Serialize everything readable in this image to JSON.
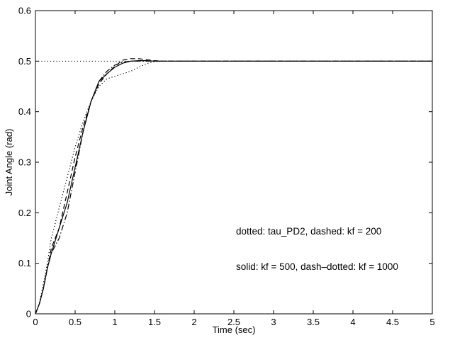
{
  "chart_data": {
    "type": "line",
    "title": "",
    "xlabel": "Time  (sec)",
    "ylabel": "Joint  Angle  (rad)",
    "xlim": [
      0,
      5
    ],
    "ylim": [
      0,
      0.6
    ],
    "xticks": [
      0,
      0.5,
      1,
      1.5,
      2,
      2.5,
      3,
      3.5,
      4,
      4.5,
      5
    ],
    "xtick_labels": [
      "0",
      "0.5",
      "1",
      "1.5",
      "2",
      "2.5",
      "3",
      "3.5",
      "4",
      "4.5",
      "5"
    ],
    "yticks": [
      0,
      0.1,
      0.2,
      0.3,
      0.4,
      0.5,
      0.6
    ],
    "ytick_labels": [
      "0",
      "0.1",
      "0.2",
      "0.3",
      "0.4",
      "0.5",
      "0.6"
    ],
    "grid": false,
    "legend": "none",
    "annotations": [
      "dotted: tau_PD2,   dashed: kf = 200",
      "solid: kf = 500,   dash–dotted: kf = 1000"
    ],
    "reference_line": {
      "style": "dotted",
      "y": 0.5
    },
    "series": [
      {
        "style": "dotted",
        "x": [
          0,
          0.05,
          0.1,
          0.15,
          0.2,
          0.3,
          0.4,
          0.5,
          0.6,
          0.7,
          0.8,
          0.9,
          1.0,
          1.1,
          1.2,
          1.3,
          1.4,
          1.5,
          1.6,
          1.8,
          2.0,
          5.0
        ],
        "y": [
          0,
          0.02,
          0.06,
          0.1,
          0.15,
          0.21,
          0.27,
          0.33,
          0.38,
          0.42,
          0.45,
          0.465,
          0.47,
          0.475,
          0.48,
          0.488,
          0.495,
          0.499,
          0.5,
          0.5,
          0.5,
          0.5
        ]
      },
      {
        "style": "dashed",
        "x": [
          0,
          0.05,
          0.1,
          0.15,
          0.2,
          0.3,
          0.4,
          0.5,
          0.6,
          0.7,
          0.8,
          0.9,
          1.0,
          1.1,
          1.2,
          1.3,
          1.4,
          1.5,
          1.6,
          1.8,
          2.0,
          5.0
        ],
        "y": [
          0,
          0.02,
          0.05,
          0.09,
          0.13,
          0.17,
          0.24,
          0.31,
          0.37,
          0.42,
          0.455,
          0.475,
          0.49,
          0.502,
          0.505,
          0.505,
          0.503,
          0.501,
          0.5,
          0.5,
          0.5,
          0.5
        ]
      },
      {
        "style": "solid",
        "x": [
          0,
          0.05,
          0.1,
          0.15,
          0.2,
          0.3,
          0.4,
          0.5,
          0.6,
          0.7,
          0.8,
          0.9,
          1.0,
          1.1,
          1.2,
          1.3,
          1.4,
          1.5,
          1.6,
          1.8,
          2.0,
          5.0
        ],
        "y": [
          0,
          0.02,
          0.05,
          0.09,
          0.12,
          0.17,
          0.22,
          0.29,
          0.36,
          0.42,
          0.46,
          0.475,
          0.488,
          0.496,
          0.5,
          0.501,
          0.501,
          0.5,
          0.5,
          0.5,
          0.5,
          0.5
        ]
      },
      {
        "style": "dash-dotted",
        "x": [
          0,
          0.05,
          0.1,
          0.15,
          0.2,
          0.3,
          0.4,
          0.5,
          0.6,
          0.7,
          0.8,
          0.9,
          1.0,
          1.1,
          1.2,
          1.3,
          1.4,
          1.5,
          1.6,
          1.8,
          2.0,
          5.0
        ],
        "y": [
          0,
          0.02,
          0.05,
          0.09,
          0.12,
          0.15,
          0.2,
          0.28,
          0.36,
          0.42,
          0.46,
          0.48,
          0.492,
          0.498,
          0.5,
          0.5,
          0.5,
          0.5,
          0.5,
          0.5,
          0.5,
          0.5
        ]
      }
    ]
  }
}
